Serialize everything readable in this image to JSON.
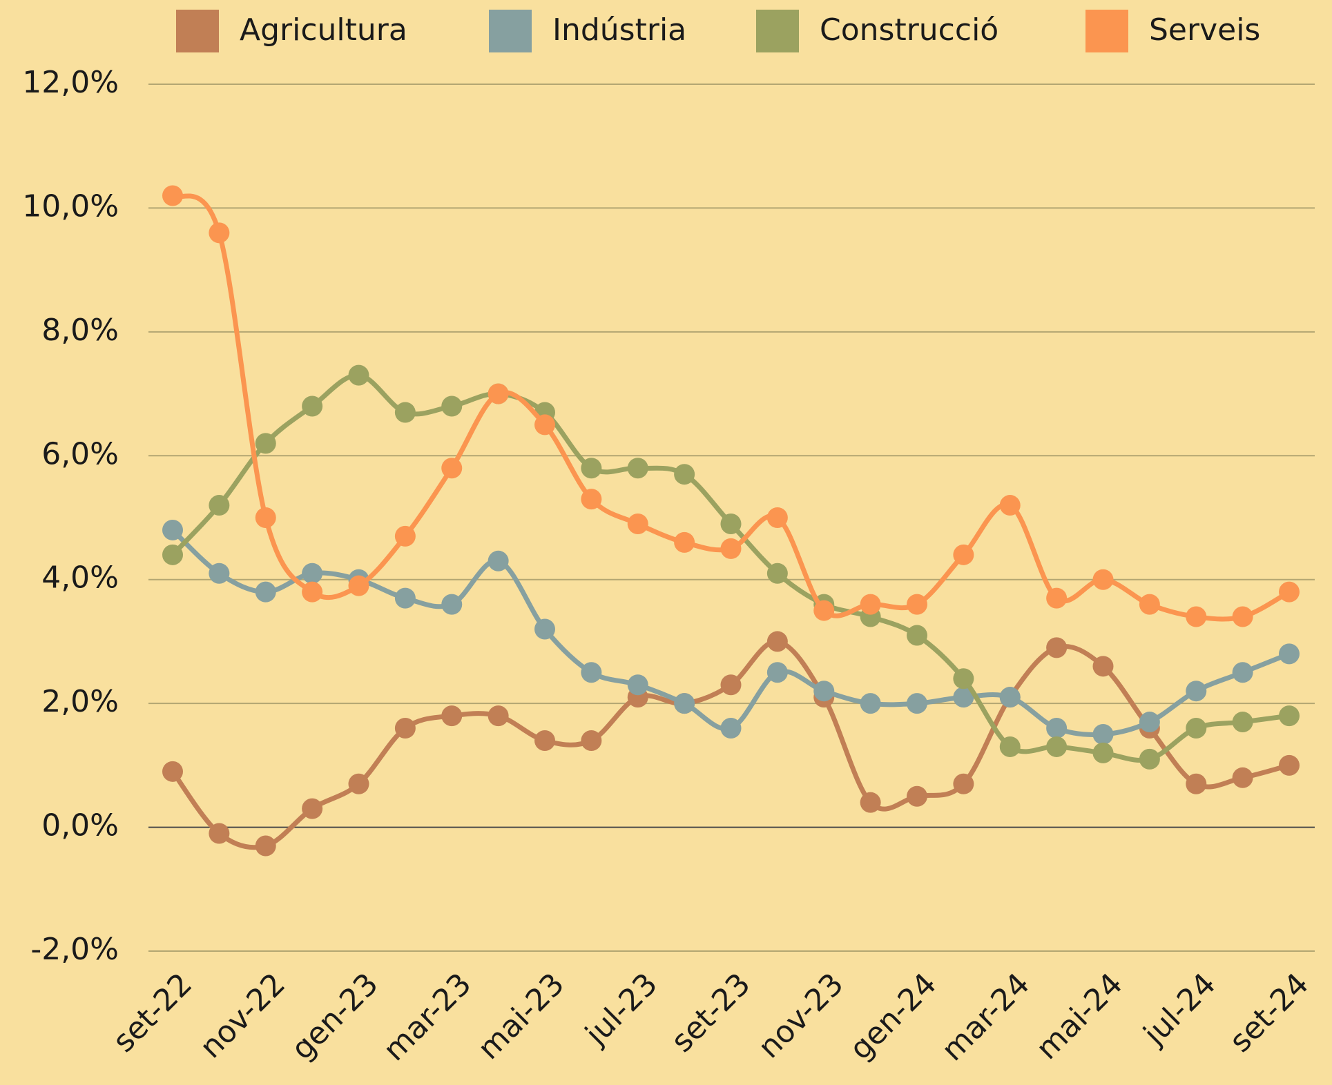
{
  "chart_data": {
    "type": "line",
    "categories": [
      "set-22",
      null,
      "nov-22",
      null,
      "gen-23",
      null,
      "mar-23",
      null,
      "mai-23",
      null,
      "jul-23",
      null,
      "set-23",
      null,
      "nov-23",
      null,
      "gen-24",
      null,
      "mar-24",
      null,
      "mai-24",
      null,
      "jul-24",
      null,
      "set-24"
    ],
    "series": [
      {
        "name": "Agricultura",
        "color": "#c17f55",
        "values": [
          0.9,
          -0.1,
          -0.3,
          0.3,
          0.7,
          1.6,
          1.8,
          1.8,
          1.4,
          1.4,
          2.1,
          2.0,
          2.3,
          3.0,
          2.1,
          0.4,
          0.5,
          0.7,
          2.1,
          2.9,
          2.6,
          1.6,
          0.7,
          0.8,
          1.0
        ]
      },
      {
        "name": "Indústria",
        "color": "#86a0a0",
        "values": [
          4.8,
          4.1,
          3.8,
          4.1,
          4.0,
          3.7,
          3.6,
          4.3,
          3.2,
          2.5,
          2.3,
          2.0,
          1.6,
          2.5,
          2.2,
          2.0,
          2.0,
          2.1,
          2.1,
          1.6,
          1.5,
          1.7,
          2.2,
          2.5,
          2.8
        ]
      },
      {
        "name": "Construcció",
        "color": "#9ba260",
        "values": [
          4.4,
          5.2,
          6.2,
          6.8,
          7.3,
          6.7,
          6.8,
          7.0,
          6.7,
          5.8,
          5.8,
          5.7,
          4.9,
          4.1,
          3.6,
          3.4,
          3.1,
          2.4,
          1.3,
          1.3,
          1.2,
          1.1,
          1.6,
          1.7,
          1.8
        ]
      },
      {
        "name": "Serveis",
        "color": "#fb9550",
        "values": [
          10.2,
          9.6,
          5.0,
          3.8,
          3.9,
          4.7,
          5.8,
          7.0,
          6.5,
          5.3,
          4.9,
          4.6,
          4.5,
          5.0,
          3.5,
          3.6,
          3.6,
          4.4,
          5.2,
          3.7,
          4.0,
          3.6,
          3.4,
          3.4,
          3.8
        ]
      }
    ],
    "ylim": [
      -2,
      12
    ],
    "yticks": [
      {
        "value": -2,
        "label": "-2,0%"
      },
      {
        "value": 0,
        "label": "0,0%"
      },
      {
        "value": 2,
        "label": "2,0%"
      },
      {
        "value": 4,
        "label": "4,0%"
      },
      {
        "value": 6,
        "label": "6,0%"
      },
      {
        "value": 8,
        "label": "8,0%"
      },
      {
        "value": 10,
        "label": "10,0%"
      },
      {
        "value": 12,
        "label": "12,0%"
      }
    ],
    "grid": true,
    "smooth": true,
    "markers": true,
    "legend": "top"
  }
}
